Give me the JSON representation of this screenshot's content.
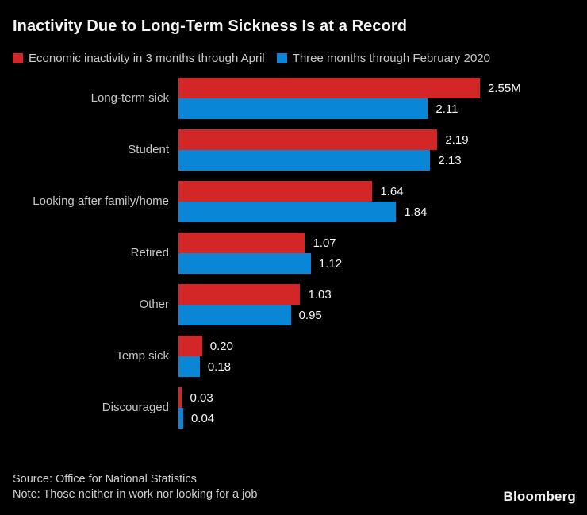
{
  "title": "Inactivity Due to Long-Term Sickness Is at a Record",
  "colors": {
    "background": "#000000",
    "series_april": "#d32727",
    "series_feb2020": "#0986d6",
    "title_text": "#f4f4f4",
    "label_text": "#c4c6c7",
    "value_text": "#f6f6f6"
  },
  "legend": [
    {
      "label": "Economic inactivity in 3 months through April",
      "color": "#d32727"
    },
    {
      "label": "Three months through February 2020",
      "color": "#0986d6"
    }
  ],
  "chart_data": {
    "type": "bar",
    "orientation": "horizontal",
    "title": "Inactivity Due to Long-Term Sickness Is at a Record",
    "categories": [
      "Long-term sick",
      "Student",
      "Looking after family/home",
      "Retired",
      "Other",
      "Temp sick",
      "Discouraged"
    ],
    "series": [
      {
        "name": "Economic inactivity in 3 months through April",
        "color": "#d32727",
        "values": [
          2.55,
          2.19,
          1.64,
          1.07,
          1.03,
          0.2,
          0.03
        ],
        "labels": [
          "2.55M",
          "2.19",
          "1.64",
          "1.07",
          "1.03",
          "0.20",
          "0.03"
        ]
      },
      {
        "name": "Three months through February 2020",
        "color": "#0986d6",
        "values": [
          2.11,
          2.13,
          1.84,
          1.12,
          0.95,
          0.18,
          0.04
        ],
        "labels": [
          "2.11",
          "2.13",
          "1.84",
          "1.12",
          "0.95",
          "0.18",
          "0.04"
        ]
      }
    ],
    "xlim": [
      0,
      2.55
    ],
    "grid": false,
    "legend_position": "top-left"
  },
  "footer": {
    "source": "Source: Office for National Statistics",
    "note": "Note: Those neither in work nor looking for a job",
    "brand": "Bloomberg"
  }
}
